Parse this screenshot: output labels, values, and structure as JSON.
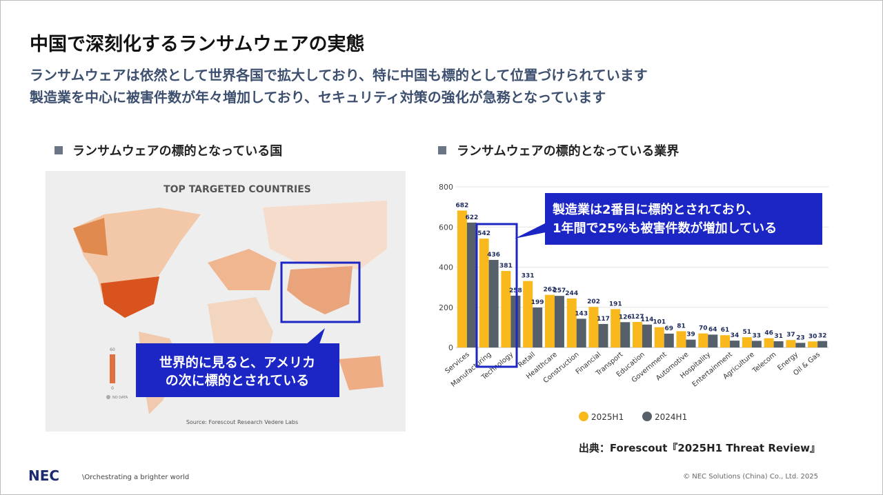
{
  "slide": {
    "title": "中国で深刻化するランサムウェアの実態",
    "subtitle": [
      "ランサムウェアは依然として世界各国で拡大しており、特に中国も標的として位置づけられています",
      "製造業を中心に被害件数が年々増加しており、セキュリティ対策の強化が急務となっています"
    ],
    "left_heading": "ランサムウェアの標的となっている国",
    "right_heading": "ランサムウェアの標的となっている業界",
    "map": {
      "title": "TOP TARGETED COUNTRIES",
      "source": "Source: Forescout Research Vedere Labs",
      "legend_max": "60",
      "legend_min": "0",
      "legend_nodata": "NO DATA"
    },
    "map_callout": [
      "世界的に見ると、アメリカ",
      "の次に標的とされている"
    ],
    "chart_callout": [
      "製造業は2番目に標的とされており、",
      "1年間で25%も被害件数が増加している"
    ],
    "source": "出典：Forescout『2025H1 Threat Review』",
    "footer": {
      "logo": "NEC",
      "tagline": "\\Orchestrating a brighter world",
      "copyright": "© NEC Solutions (China) Co., Ltd. 2025"
    }
  },
  "chart_data": {
    "type": "bar",
    "categories": [
      "Services",
      "Manufacturing",
      "Technology",
      "Retail",
      "Healthcare",
      "Construction",
      "Financial",
      "Transport",
      "Education",
      "Government",
      "Automotive",
      "Hospitality",
      "Entertainment",
      "Agriculture",
      "Telecom",
      "Energy",
      "Oil & Gas"
    ],
    "series": [
      {
        "name": "2025H1",
        "color": "#f9b81b",
        "values": [
          682,
          542,
          381,
          331,
          262,
          244,
          202,
          191,
          127,
          101,
          81,
          70,
          61,
          51,
          46,
          37,
          30
        ]
      },
      {
        "name": "2024H1",
        "color": "#56606b",
        "values": [
          622,
          436,
          258,
          199,
          257,
          143,
          117,
          126,
          114,
          69,
          39,
          64,
          34,
          33,
          31,
          23,
          32
        ]
      }
    ],
    "ylim": [
      0,
      800
    ],
    "yticks": [
      0,
      200,
      400,
      600,
      800
    ],
    "grid": true
  }
}
